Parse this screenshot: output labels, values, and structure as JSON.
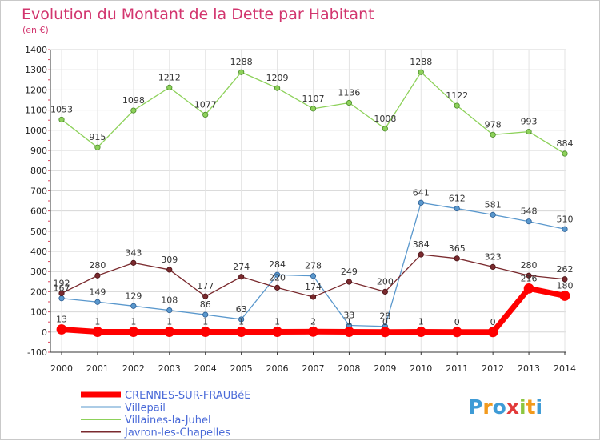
{
  "chart_data": {
    "type": "line",
    "title": "Evolution du Montant de la Dette par Habitant",
    "subtitle": "(en €)",
    "xlabel": "",
    "ylabel": "",
    "ylim": [
      -100,
      1400
    ],
    "yticks": [
      "-100",
      "0",
      "100",
      "200",
      "300",
      "400",
      "500",
      "600",
      "700",
      "800",
      "900",
      "1000",
      "1100",
      "1200",
      "1300",
      "1400"
    ],
    "categories": [
      "2000",
      "2001",
      "2002",
      "2003",
      "2004",
      "2005",
      "2006",
      "2007",
      "2008",
      "2009",
      "2010",
      "2011",
      "2012",
      "2013",
      "2014"
    ],
    "grid": true,
    "legend_position": "bottom-left",
    "series": [
      {
        "name": "Villaines-la-Juhel",
        "color": "#8dd15a",
        "values": [
          1053,
          915,
          1098,
          1212,
          1077,
          1288,
          1209,
          1107,
          1136,
          1008,
          1288,
          1122,
          978,
          993,
          884
        ]
      },
      {
        "name": "Villepail",
        "color": "#5a98cd",
        "values": [
          167,
          149,
          129,
          108,
          86,
          63,
          284,
          278,
          33,
          28,
          641,
          612,
          581,
          548,
          510
        ]
      },
      {
        "name": "Javron-les-Chapelles",
        "color": "#7a2a2e",
        "values": [
          192,
          280,
          343,
          309,
          177,
          274,
          220,
          174,
          249,
          200,
          384,
          365,
          323,
          280,
          262
        ]
      },
      {
        "name": "CRENNES-SUR-FRAUBéE",
        "color": "#ff0000",
        "values": [
          13,
          1,
          1,
          1,
          1,
          1,
          1,
          2,
          1,
          0,
          1,
          0,
          0,
          216,
          180
        ]
      }
    ]
  },
  "legend": {
    "items": [
      "CRENNES-SUR-FRAUBéE",
      "Villepail",
      "Villaines-la-Juhel",
      "Javron-les-Chapelles"
    ]
  },
  "brand": {
    "text": "Proxiti",
    "colors": [
      "#3e9bd6",
      "#f29a1d",
      "#3e9bd6",
      "#e23a3a",
      "#8cc63f",
      "#f29a1d",
      "#3e9bd6"
    ]
  }
}
